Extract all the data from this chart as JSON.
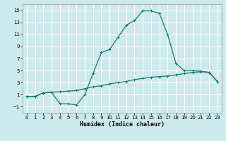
{
  "title": "",
  "xlabel": "Humidex (Indice chaleur)",
  "background_color": "#cce9ed",
  "grid_color": "#ffffff",
  "line_color": "#1a7a6e",
  "xlim": [
    -0.5,
    23.5
  ],
  "ylim": [
    -2,
    16
  ],
  "xticks": [
    0,
    1,
    2,
    3,
    4,
    5,
    6,
    7,
    8,
    9,
    10,
    11,
    12,
    13,
    14,
    15,
    16,
    17,
    18,
    19,
    20,
    21,
    22,
    23
  ],
  "yticks": [
    -1,
    1,
    3,
    5,
    7,
    9,
    11,
    13,
    15
  ],
  "curve1_x": [
    0,
    1,
    2,
    3,
    4,
    5,
    6,
    7,
    8,
    9,
    10,
    11,
    12,
    13,
    14,
    15,
    16,
    17,
    18,
    19,
    20,
    21,
    22,
    23
  ],
  "curve1_y": [
    0.7,
    0.7,
    1.3,
    1.4,
    -0.5,
    -0.5,
    -0.7,
    1.0,
    4.5,
    8.0,
    8.5,
    10.5,
    12.5,
    13.3,
    14.9,
    14.9,
    14.5,
    11.0,
    6.2,
    5.0,
    5.0,
    4.9,
    4.7,
    3.2
  ],
  "curve2_x": [
    0,
    1,
    2,
    3,
    4,
    5,
    6,
    7,
    8,
    9,
    10,
    11,
    12,
    13,
    14,
    15,
    16,
    17,
    18,
    19,
    20,
    21,
    22,
    23
  ],
  "curve2_y": [
    0.7,
    0.7,
    1.3,
    1.4,
    1.5,
    1.6,
    1.7,
    2.0,
    2.3,
    2.5,
    2.8,
    3.0,
    3.2,
    3.5,
    3.7,
    3.9,
    4.0,
    4.1,
    4.3,
    4.5,
    4.7,
    4.8,
    4.7,
    3.2
  ],
  "marker": "+",
  "xlabel_fontsize": 6.0,
  "tick_fontsize": 5.0
}
